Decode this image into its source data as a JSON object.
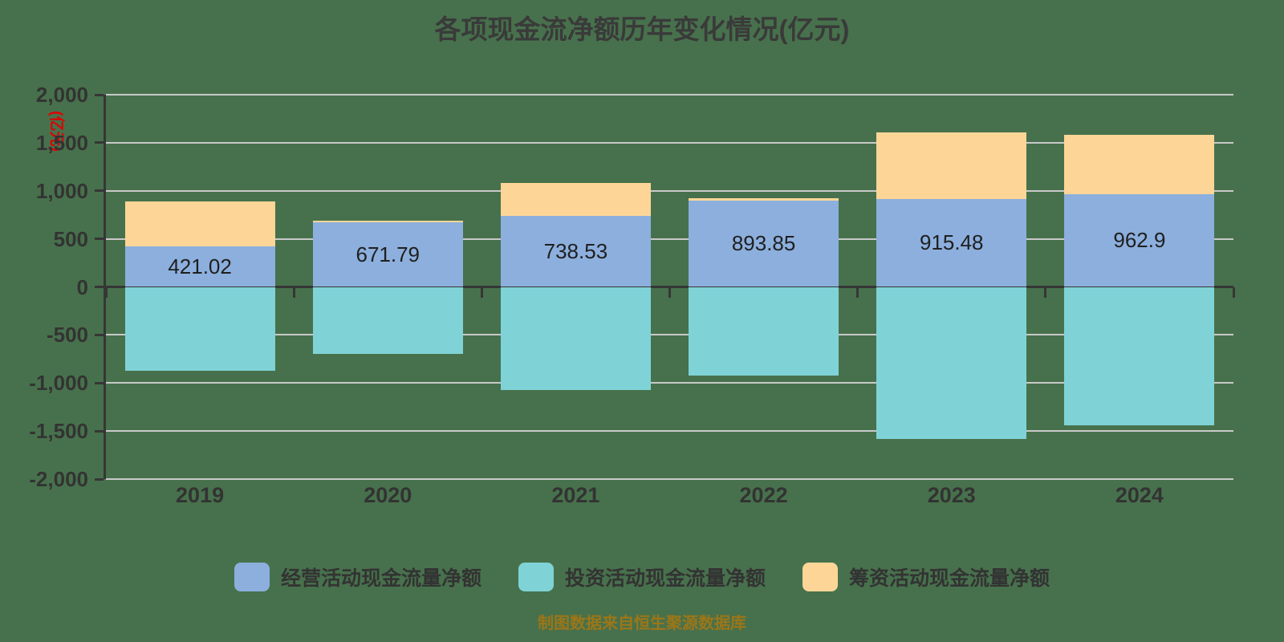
{
  "title": "各项现金流净额历年变化情况(亿元)",
  "y_axis": {
    "unit_label": "(亿元)",
    "tick_values": [
      2000,
      1500,
      1000,
      500,
      0,
      -500,
      -1000,
      -1500,
      -2000
    ],
    "tick_labels": [
      "2,000",
      "1,500",
      "1,000",
      "500",
      "0",
      "-500",
      "-1,000",
      "-1,500",
      "-2,000"
    ]
  },
  "footer": {
    "text": "制图数据来自恒生聚源数据库"
  },
  "colors": {
    "background": "#47714c",
    "grid": "#c9c9c9",
    "axis": "#363636",
    "axis_text": "#333333",
    "value_label_text": "#1f1f1f",
    "unit_label_red": "#e00000",
    "footer_gold": "#9c7618"
  },
  "chart_data": {
    "type": "bar",
    "stacked": true,
    "title": "各项现金流净额历年变化情况(亿元)",
    "categories": [
      "2019",
      "2020",
      "2021",
      "2022",
      "2023",
      "2024"
    ],
    "series": [
      {
        "name": "经营活动现金流量净额",
        "color": "#8cafdd",
        "values": [
          421.02,
          671.79,
          738.53,
          893.85,
          915.48,
          962.9
        ],
        "value_labels": [
          "421.02",
          "671.79",
          "738.53",
          "893.85",
          "915.48",
          "962.9"
        ]
      },
      {
        "name": "投资活动现金流量净额",
        "color": "#7fd3d7",
        "values": [
          -869,
          -697,
          -1074,
          -919,
          -1581,
          -1443
        ]
      },
      {
        "name": "筹资活动现金流量净额",
        "color": "#fdd697",
        "values": [
          467,
          21,
          345,
          31,
          689,
          619
        ]
      }
    ],
    "ylim": [
      -2000,
      2000
    ],
    "grid": true,
    "legend_position": "bottom"
  }
}
